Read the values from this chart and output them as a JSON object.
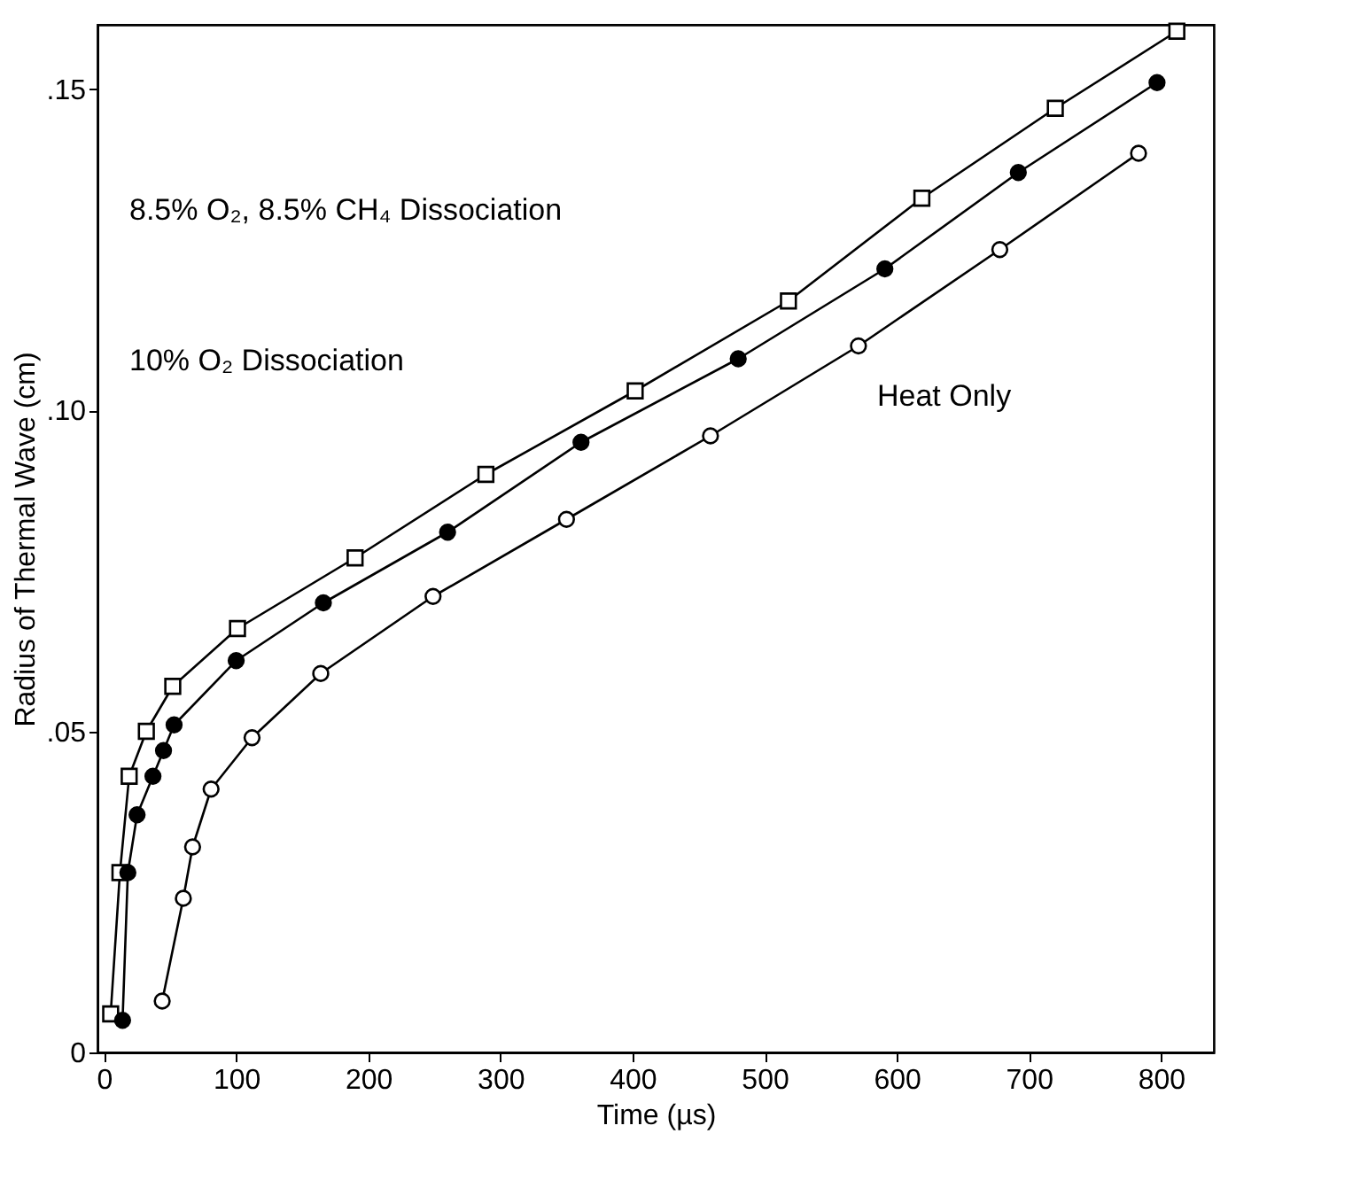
{
  "chart_data": {
    "type": "line",
    "xlabel": "Time (µs)",
    "ylabel": "Radius of Thermal Wave (cm)",
    "xlim": [
      -5,
      840
    ],
    "ylim": [
      0,
      0.16
    ],
    "xticks": [
      0,
      100,
      200,
      300,
      400,
      500,
      600,
      700,
      800
    ],
    "yticks": [
      {
        "value": 0,
        "label": "0"
      },
      {
        "value": 0.05,
        "label": ".05"
      },
      {
        "value": 0.1,
        "label": ".10"
      },
      {
        "value": 0.15,
        "label": ".15"
      }
    ],
    "grid": false,
    "line_style": "solid",
    "series": [
      {
        "color": "#000000",
        "marker": "square",
        "x": [
          5,
          12,
          19,
          32,
          52,
          101,
          190,
          289,
          402,
          518,
          619,
          720,
          812
        ],
        "values": [
          0.006,
          0.028,
          0.043,
          0.05,
          0.057,
          0.066,
          0.077,
          0.09,
          0.103,
          0.117,
          0.133,
          0.147,
          0.159
        ]
      },
      {
        "color": "#000000",
        "marker": "circle",
        "x": [
          14,
          18,
          25,
          37,
          45,
          53,
          100,
          166,
          260,
          361,
          480,
          591,
          692,
          797
        ],
        "values": [
          0.005,
          0.028,
          0.037,
          0.043,
          0.047,
          0.051,
          0.061,
          0.07,
          0.081,
          0.095,
          0.108,
          0.122,
          0.137,
          0.151
        ]
      },
      {
        "color": "#000000",
        "marker": "circle",
        "x": [
          44,
          60,
          67,
          81,
          112,
          164,
          249,
          350,
          459,
          571,
          678,
          783
        ],
        "values": [
          0.008,
          0.024,
          0.032,
          0.041,
          0.049,
          0.059,
          0.071,
          0.083,
          0.096,
          0.11,
          0.125,
          0.14
        ]
      }
    ],
    "annotations": [
      "8.5% O₂, 8.5% CH₄ Dissociation",
      "10% O₂ Dissociation",
      "Heat Only"
    ]
  }
}
